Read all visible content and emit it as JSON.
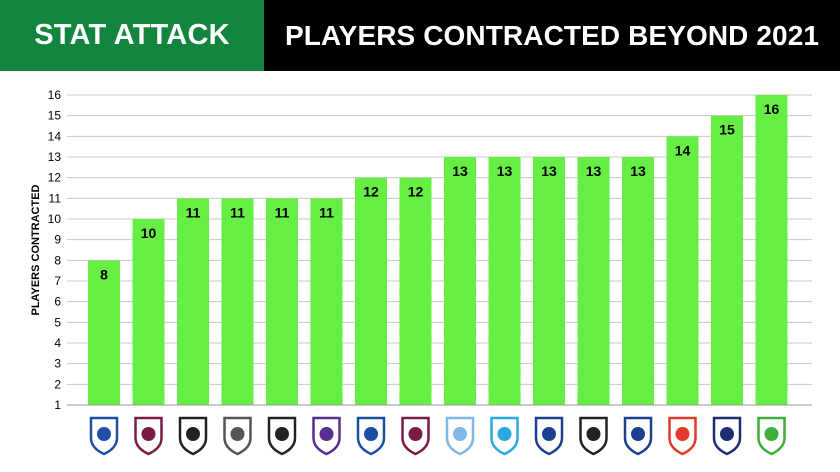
{
  "header": {
    "left_title": "STAT ATTACK",
    "right_title": "PLAYERS CONTRACTED BEYOND 2021"
  },
  "colors": {
    "header_left_bg": "#14853f",
    "header_right_bg": "#000000",
    "bar_fill": "#66ee44",
    "grid": "#c8c8c8"
  },
  "chart_data": {
    "type": "bar",
    "ylabel": "PLAYERS CONTRACTED",
    "ylim": [
      1,
      16
    ],
    "yticks": [
      1,
      2,
      3,
      4,
      5,
      6,
      7,
      8,
      9,
      10,
      11,
      12,
      13,
      14,
      15,
      16
    ],
    "grid": true,
    "values": [
      8,
      10,
      11,
      11,
      11,
      11,
      12,
      12,
      13,
      13,
      13,
      13,
      13,
      14,
      15,
      16
    ],
    "category_logos": [
      {
        "icon": "bulldogs-logo-icon",
        "color": "#1f4fa8"
      },
      {
        "icon": "sea-eagles-logo-icon",
        "color": "#7a1b45"
      },
      {
        "icon": "tigers-logo-icon",
        "color": "#222222"
      },
      {
        "icon": "dragons-logo-icon",
        "color": "#555555"
      },
      {
        "icon": "rabbitohs-logo-icon",
        "color": "#222222"
      },
      {
        "icon": "storm-logo-icon",
        "color": "#5a2d91"
      },
      {
        "icon": "eels-logo-icon",
        "color": "#1b4fa0"
      },
      {
        "icon": "broncos-logo-icon",
        "color": "#7a1b45"
      },
      {
        "icon": "titans-logo-icon",
        "color": "#7fb8e6"
      },
      {
        "icon": "sharks-logo-icon",
        "color": "#29a9e0"
      },
      {
        "icon": "roosters-logo-icon",
        "color": "#1d3f8f"
      },
      {
        "icon": "warriors-logo-icon",
        "color": "#222222"
      },
      {
        "icon": "knights-logo-icon",
        "color": "#1d3f8f"
      },
      {
        "icon": "dolphins-logo-icon",
        "color": "#e23a2c"
      },
      {
        "icon": "cowboys-logo-icon",
        "color": "#1d2f6f"
      },
      {
        "icon": "raiders-logo-icon",
        "color": "#3fae3a"
      }
    ]
  }
}
